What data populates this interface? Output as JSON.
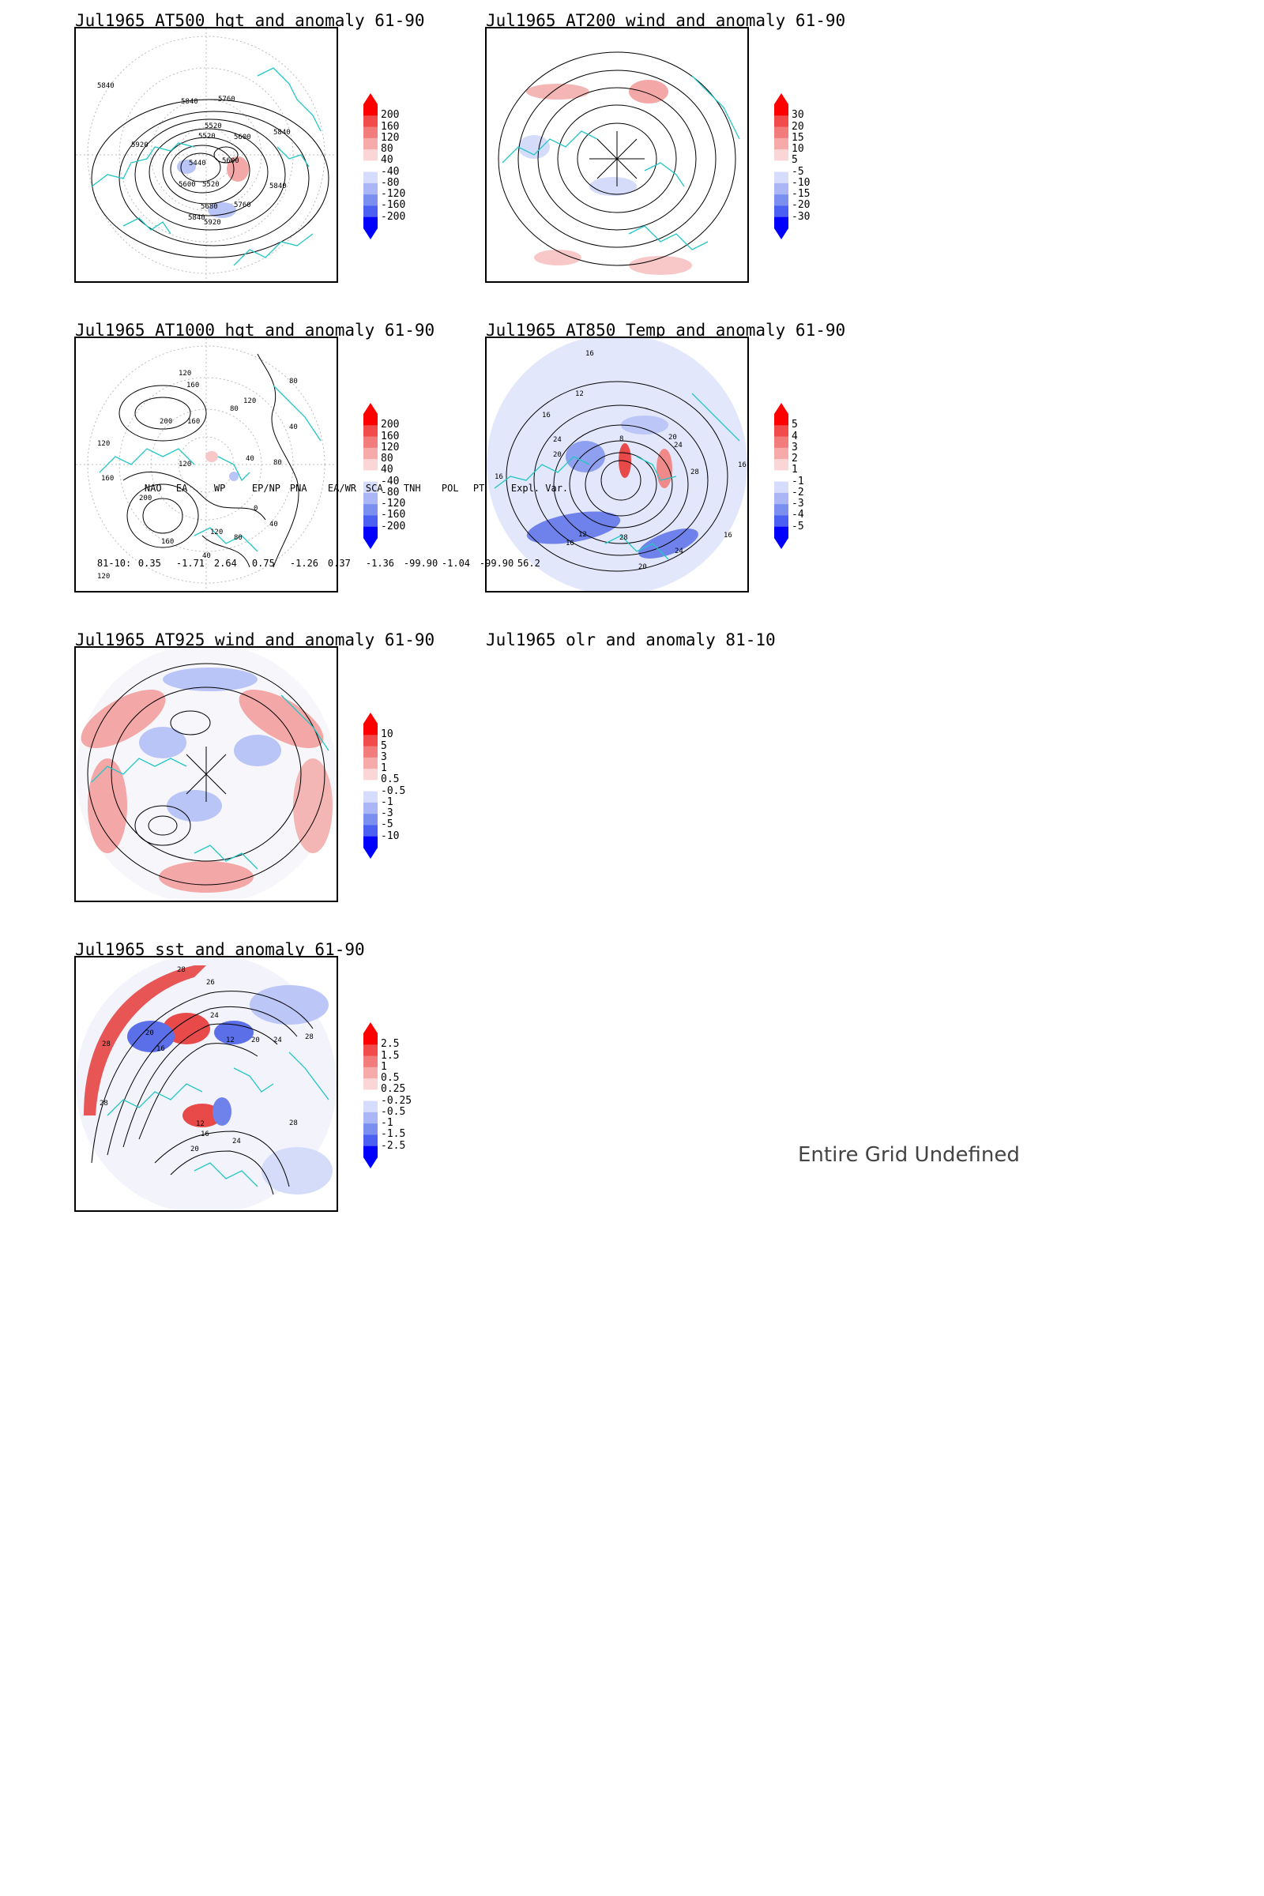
{
  "panels": {
    "p1": {
      "title": "Jul1965 AT500 hgt and anomaly 61-90",
      "colorbar": [
        "200",
        "160",
        "120",
        "80",
        "40",
        "-40",
        "-80",
        "-120",
        "-160",
        "-200"
      ],
      "contour_labels": [
        "5840",
        "5840",
        "5760",
        "5520",
        "5520",
        "5600",
        "5840",
        "5920",
        "5440",
        "5600",
        "5520",
        "5600",
        "5840",
        "5680",
        "5760",
        "5920",
        "5840"
      ]
    },
    "p2": {
      "title": "Jul1965 AT200 wind and anomaly 61-90",
      "colorbar": [
        "30",
        "20",
        "15",
        "10",
        "5",
        "-5",
        "-10",
        "-15",
        "-20",
        "-30"
      ]
    },
    "p3": {
      "title": "Jul1965 AT1000 hgt and anomaly 61-90",
      "colorbar": [
        "200",
        "160",
        "120",
        "80",
        "40",
        "-40",
        "-80",
        "-120",
        "-160",
        "-200"
      ],
      "contour_labels": [
        "120",
        "160",
        "200",
        "160",
        "80",
        "120",
        "80",
        "120",
        "40",
        "200",
        "160",
        "120",
        "40",
        "80",
        "0",
        "40",
        "120",
        "160",
        "120",
        "80",
        "40"
      ]
    },
    "p4": {
      "title": "Jul1965 AT850 Temp and anomaly 61-90",
      "colorbar": [
        "5",
        "4",
        "3",
        "2",
        "1",
        "-1",
        "-2",
        "-3",
        "-4",
        "-5"
      ],
      "contour_labels": [
        "16",
        "12",
        "16",
        "24",
        "20",
        "8",
        "20",
        "24",
        "28",
        "16",
        "16",
        "12",
        "16",
        "28",
        "24",
        "20",
        "16"
      ]
    },
    "p5": {
      "title": "Jul1965 AT925 wind and anomaly 61-90",
      "colorbar": [
        "10",
        "5",
        "3",
        "1",
        "0.5",
        "-0.5",
        "-1",
        "-3",
        "-5",
        "-10"
      ]
    },
    "p6": {
      "title": "Jul1965 olr and anomaly 81-10",
      "message": "Entire Grid Undefined"
    },
    "p7": {
      "title": "Jul1965 sst and anomaly 61-90",
      "colorbar": [
        "2.5",
        "1.5",
        "1",
        "0.5",
        "0.25",
        "-0.25",
        "-0.5",
        "-1",
        "-1.5",
        "-2.5"
      ],
      "contour_labels": [
        "28",
        "26",
        "24",
        "20",
        "16",
        "28",
        "28",
        "12",
        "20",
        "24",
        "28",
        "12",
        "16",
        "20",
        "24",
        "28"
      ]
    }
  },
  "teleconnections": {
    "headers": [
      "NAO",
      "EA",
      "WP",
      "EP/NP",
      "PNA",
      "EA/WR",
      "SCA",
      "TNH",
      "POL",
      "PT",
      "Expl. Var."
    ],
    "row_label": "81-10:",
    "values": [
      "0.35",
      "-1.71",
      "2.64",
      "0.75",
      "-1.26",
      "0.37",
      "-1.36",
      "-99.90",
      "-1.04",
      "-99.90",
      "56.2"
    ]
  }
}
